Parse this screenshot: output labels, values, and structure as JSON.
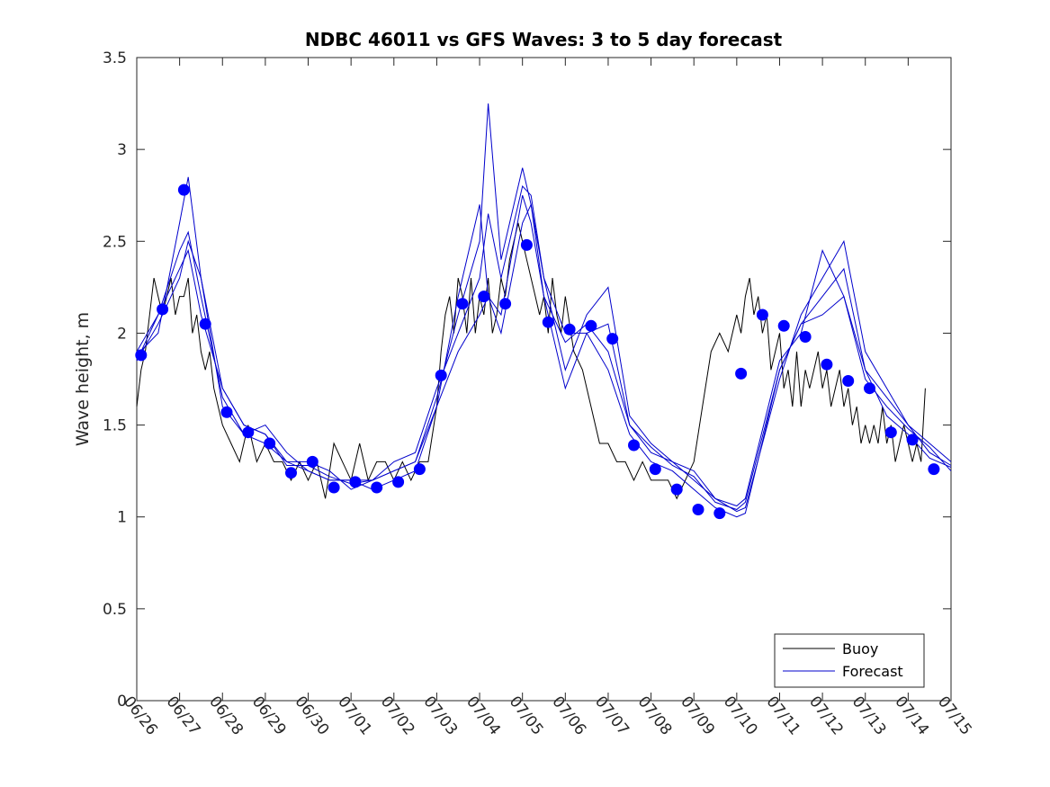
{
  "chart_data": {
    "type": "line",
    "title": "NDBC 46011 vs GFS Waves: 3 to 5 day forecast",
    "xlabel": "",
    "ylabel": "Wave height, m",
    "x_ticks": [
      "06/26",
      "06/27",
      "06/28",
      "06/29",
      "06/30",
      "07/01",
      "07/02",
      "07/03",
      "07/04",
      "07/05",
      "07/06",
      "07/07",
      "07/08",
      "07/09",
      "07/10",
      "07/11",
      "07/12",
      "07/13",
      "07/14",
      "07/15"
    ],
    "y_ticks": [
      "0",
      "0.5",
      "1",
      "1.5",
      "2",
      "2.5",
      "3",
      "3.5"
    ],
    "xlim_days": [
      0,
      19
    ],
    "ylim": [
      0,
      3.5
    ],
    "grid": false,
    "legend_position": "bottom-right",
    "colors": {
      "buoy": "#000000",
      "forecast": "#0000cc",
      "points": "#0000ff"
    },
    "series": [
      {
        "name": "Buoy",
        "style": "line",
        "x": [
          0,
          0.1,
          0.2,
          0.3,
          0.4,
          0.5,
          0.6,
          0.7,
          0.8,
          0.9,
          1.0,
          1.1,
          1.2,
          1.3,
          1.4,
          1.5,
          1.6,
          1.7,
          1.8,
          1.9,
          2.0,
          2.2,
          2.4,
          2.6,
          2.8,
          3.0,
          3.2,
          3.4,
          3.6,
          3.8,
          4.0,
          4.2,
          4.4,
          4.6,
          4.8,
          5.0,
          5.2,
          5.4,
          5.6,
          5.8,
          6.0,
          6.2,
          6.4,
          6.6,
          6.8,
          7.0,
          7.1,
          7.2,
          7.3,
          7.4,
          7.5,
          7.6,
          7.7,
          7.8,
          7.9,
          8.0,
          8.1,
          8.2,
          8.3,
          8.4,
          8.5,
          8.6,
          8.7,
          8.8,
          8.9,
          9.0,
          9.1,
          9.2,
          9.3,
          9.4,
          9.5,
          9.6,
          9.7,
          9.8,
          9.9,
          10.0,
          10.2,
          10.4,
          10.6,
          10.8,
          11.0,
          11.2,
          11.4,
          11.6,
          11.8,
          12.0,
          12.2,
          12.4,
          12.6,
          12.8,
          13.0,
          13.2,
          13.4,
          13.6,
          13.8,
          14.0,
          14.1,
          14.2,
          14.3,
          14.4,
          14.5,
          14.6,
          14.7,
          14.8,
          14.9,
          15.0,
          15.1,
          15.2,
          15.3,
          15.4,
          15.5,
          15.6,
          15.7,
          15.8,
          15.9,
          16.0,
          16.1,
          16.2,
          16.3,
          16.4,
          16.5,
          16.6,
          16.7,
          16.8,
          16.9,
          17.0,
          17.1,
          17.2,
          17.3,
          17.4,
          17.5,
          17.6,
          17.7,
          17.8,
          17.9,
          18.0,
          18.1,
          18.2,
          18.3,
          18.4
        ],
        "y": [
          1.6,
          1.8,
          1.9,
          2.1,
          2.3,
          2.2,
          2.1,
          2.2,
          2.3,
          2.1,
          2.2,
          2.2,
          2.3,
          2.0,
          2.1,
          1.9,
          1.8,
          1.9,
          1.7,
          1.6,
          1.5,
          1.4,
          1.3,
          1.5,
          1.3,
          1.4,
          1.3,
          1.3,
          1.2,
          1.3,
          1.2,
          1.3,
          1.1,
          1.4,
          1.3,
          1.2,
          1.4,
          1.2,
          1.3,
          1.3,
          1.2,
          1.3,
          1.2,
          1.3,
          1.3,
          1.6,
          1.9,
          2.1,
          2.2,
          2.0,
          2.3,
          2.2,
          2.0,
          2.3,
          2.0,
          2.2,
          2.1,
          2.3,
          2.0,
          2.1,
          2.3,
          2.2,
          2.4,
          2.5,
          2.6,
          2.5,
          2.4,
          2.3,
          2.2,
          2.1,
          2.2,
          2.0,
          2.3,
          2.1,
          2.0,
          2.2,
          1.9,
          1.8,
          1.6,
          1.4,
          1.4,
          1.3,
          1.3,
          1.2,
          1.3,
          1.2,
          1.2,
          1.2,
          1.1,
          1.2,
          1.3,
          1.6,
          1.9,
          2.0,
          1.9,
          2.1,
          2.0,
          2.2,
          2.3,
          2.1,
          2.2,
          2.0,
          2.1,
          1.8,
          1.9,
          2.0,
          1.7,
          1.8,
          1.6,
          1.9,
          1.6,
          1.8,
          1.7,
          1.8,
          1.9,
          1.7,
          1.8,
          1.6,
          1.7,
          1.8,
          1.6,
          1.7,
          1.5,
          1.6,
          1.4,
          1.5,
          1.4,
          1.5,
          1.4,
          1.6,
          1.4,
          1.5,
          1.3,
          1.4,
          1.5,
          1.4,
          1.3,
          1.4,
          1.3,
          1.7
        ]
      },
      {
        "name": "Forecast",
        "style": "multi-line",
        "lines": [
          {
            "x": [
              0,
              0.5,
              1.0,
              1.2,
              1.5,
              2.0,
              2.5,
              3.0,
              3.5,
              4.0,
              4.5,
              5.0,
              5.5,
              6.0,
              6.5,
              7.0,
              7.5,
              8.0,
              8.2,
              8.5,
              9.0,
              9.2,
              9.5,
              10.0,
              10.5,
              11.0,
              11.5,
              12.0,
              12.5,
              13.0,
              13.5,
              14.0,
              14.2,
              15.0,
              15.5,
              16.0,
              16.5,
              17.0,
              17.5,
              18.0,
              18.5,
              19.0
            ],
            "y": [
              1.85,
              2.05,
              2.3,
              2.5,
              2.3,
              1.7,
              1.5,
              1.45,
              1.3,
              1.25,
              1.2,
              1.2,
              1.15,
              1.2,
              1.25,
              1.6,
              1.9,
              2.1,
              2.2,
              2.0,
              2.6,
              2.7,
              2.3,
              2.0,
              2.0,
              1.8,
              1.45,
              1.3,
              1.25,
              1.15,
              1.05,
              1.0,
              1.02,
              1.8,
              2.05,
              2.1,
              2.2,
              1.8,
              1.65,
              1.5,
              1.35,
              1.28
            ]
          },
          {
            "x": [
              0,
              0.5,
              1.0,
              1.2,
              1.5,
              2.0,
              2.5,
              3.0,
              3.5,
              4.0,
              4.5,
              5.0,
              5.5,
              6.0,
              6.5,
              7.0,
              7.5,
              8.0,
              8.2,
              8.5,
              9.0,
              9.2,
              9.5,
              10.0,
              10.5,
              11.0,
              11.5,
              12.0,
              12.5,
              13.0,
              13.5,
              14.0,
              14.2,
              15.0,
              15.5,
              16.0,
              16.5,
              17.0,
              17.5,
              18.0,
              18.5,
              19.0
            ],
            "y": [
              1.9,
              2.1,
              2.45,
              2.55,
              2.2,
              1.65,
              1.45,
              1.4,
              1.3,
              1.3,
              1.25,
              1.15,
              1.2,
              1.25,
              1.3,
              1.65,
              2.1,
              2.5,
              3.25,
              2.4,
              2.9,
              2.7,
              2.2,
              1.95,
              2.05,
              1.9,
              1.5,
              1.35,
              1.3,
              1.2,
              1.1,
              1.03,
              1.05,
              1.75,
              2.1,
              2.3,
              2.5,
              1.9,
              1.7,
              1.5,
              1.4,
              1.3
            ]
          },
          {
            "x": [
              0,
              0.5,
              1.0,
              1.2,
              1.5,
              2.0,
              2.5,
              3.0,
              3.5,
              4.0,
              4.5,
              5.0,
              5.5,
              6.0,
              6.5,
              7.0,
              7.5,
              8.0,
              8.2,
              8.5,
              9.0,
              9.2,
              9.5,
              10.0,
              10.5,
              11.0,
              11.5,
              12.0,
              12.5,
              13.0,
              13.5,
              14.0,
              14.2,
              15.0,
              15.5,
              16.0,
              16.5,
              17.0,
              17.5,
              18.0,
              18.5,
              19.0
            ],
            "y": [
              1.88,
              2.0,
              2.6,
              2.85,
              2.3,
              1.6,
              1.45,
              1.5,
              1.35,
              1.25,
              1.2,
              1.2,
              1.2,
              1.3,
              1.35,
              1.7,
              2.0,
              2.3,
              2.65,
              2.3,
              2.8,
              2.75,
              2.3,
              1.8,
              2.1,
              2.25,
              1.55,
              1.4,
              1.3,
              1.25,
              1.1,
              1.06,
              1.1,
              1.85,
              2.0,
              2.45,
              2.2,
              1.75,
              1.6,
              1.48,
              1.38,
              1.25
            ]
          },
          {
            "x": [
              0,
              0.5,
              1.0,
              1.2,
              1.5,
              2.0,
              2.5,
              3.0,
              3.5,
              4.0,
              4.5,
              5.0,
              5.5,
              6.0,
              6.5,
              7.0,
              7.5,
              8.0,
              8.2,
              8.5,
              9.0,
              9.2,
              9.5,
              10.0,
              10.5,
              11.0,
              11.5,
              12.0,
              12.5,
              13.0,
              13.5,
              14.0,
              14.2,
              15.0,
              15.5,
              16.0,
              16.5,
              17.0,
              17.5,
              18.0,
              18.5,
              19.0
            ],
            "y": [
              1.85,
              2.1,
              2.35,
              2.45,
              2.1,
              1.7,
              1.5,
              1.45,
              1.28,
              1.28,
              1.22,
              1.18,
              1.2,
              1.25,
              1.3,
              1.6,
              2.2,
              2.7,
              2.2,
              2.1,
              2.75,
              2.6,
              2.2,
              1.7,
              2.0,
              2.05,
              1.5,
              1.38,
              1.28,
              1.22,
              1.08,
              1.04,
              1.08,
              1.8,
              2.05,
              2.2,
              2.35,
              1.8,
              1.55,
              1.45,
              1.32,
              1.27
            ]
          }
        ]
      },
      {
        "name": "Forecast points",
        "style": "markers",
        "x": [
          0.1,
          0.6,
          1.1,
          1.6,
          2.1,
          2.6,
          3.1,
          3.6,
          4.1,
          4.6,
          5.1,
          5.6,
          6.1,
          6.6,
          7.1,
          7.6,
          8.1,
          8.6,
          9.1,
          9.6,
          10.1,
          10.6,
          11.1,
          11.6,
          12.1,
          12.6,
          13.1,
          13.6,
          14.1,
          14.6,
          15.1,
          15.6,
          16.1,
          16.6,
          17.1,
          17.6,
          18.1,
          18.6
        ],
        "y": [
          1.88,
          2.13,
          2.78,
          2.05,
          1.57,
          1.46,
          1.4,
          1.24,
          1.3,
          1.16,
          1.19,
          1.16,
          1.19,
          1.26,
          1.77,
          2.16,
          2.2,
          2.16,
          2.48,
          2.06,
          2.02,
          2.04,
          1.97,
          1.39,
          1.26,
          1.15,
          1.04,
          1.02,
          1.78,
          2.1,
          2.04,
          1.98,
          1.83,
          1.74,
          1.7,
          1.46,
          1.42,
          1.26
        ]
      }
    ]
  },
  "legend": {
    "items": [
      {
        "label": "Buoy",
        "color": "#000000"
      },
      {
        "label": "Forecast",
        "color": "#0000cc"
      }
    ]
  }
}
